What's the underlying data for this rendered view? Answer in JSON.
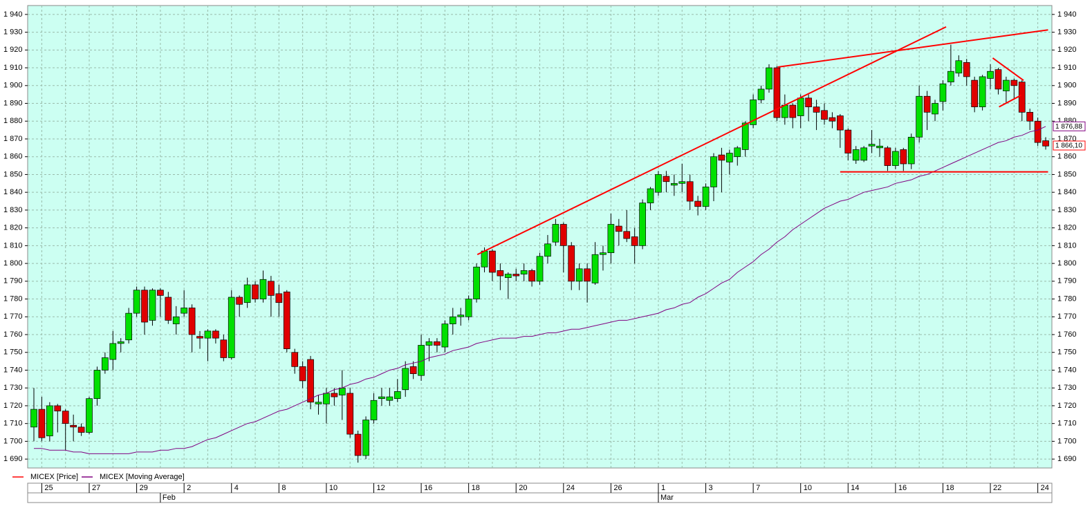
{
  "chart_data": {
    "type": "candlestick",
    "ylim": [
      1685,
      1945
    ],
    "yticks": [
      {
        "value": 1690,
        "label": "1 690"
      },
      {
        "value": 1700,
        "label": "1 700"
      },
      {
        "value": 1710,
        "label": "1 710"
      },
      {
        "value": 1720,
        "label": "1 720"
      },
      {
        "value": 1730,
        "label": "1 730"
      },
      {
        "value": 1740,
        "label": "1 740"
      },
      {
        "value": 1750,
        "label": "1 750"
      },
      {
        "value": 1760,
        "label": "1 760"
      },
      {
        "value": 1770,
        "label": "1 770"
      },
      {
        "value": 1780,
        "label": "1 780"
      },
      {
        "value": 1790,
        "label": "1 790"
      },
      {
        "value": 1800,
        "label": "1 800"
      },
      {
        "value": 1810,
        "label": "1 810"
      },
      {
        "value": 1820,
        "label": "1 820"
      },
      {
        "value": 1830,
        "label": "1 830"
      },
      {
        "value": 1840,
        "label": "1 840"
      },
      {
        "value": 1850,
        "label": "1 850"
      },
      {
        "value": 1860,
        "label": "1 860"
      },
      {
        "value": 1870,
        "label": "1 870"
      },
      {
        "value": 1880,
        "label": "1 880"
      },
      {
        "value": 1890,
        "label": "1 890"
      },
      {
        "value": 1900,
        "label": "1 900"
      },
      {
        "value": 1910,
        "label": "1 910"
      },
      {
        "value": 1920,
        "label": "1 920"
      },
      {
        "value": 1930,
        "label": "1 930"
      },
      {
        "value": 1940,
        "label": "1 940"
      }
    ],
    "grid": true,
    "up_color": "#00e000",
    "down_color": "#e00000",
    "date_ticks": [
      {
        "index": 1,
        "label": "25"
      },
      {
        "index": 7,
        "label": "27"
      },
      {
        "index": 13,
        "label": "29"
      },
      {
        "index": 19,
        "label": "2"
      },
      {
        "index": 25,
        "label": "4"
      },
      {
        "index": 31,
        "label": "8"
      },
      {
        "index": 37,
        "label": "10"
      },
      {
        "index": 43,
        "label": "12"
      },
      {
        "index": 49,
        "label": "16"
      },
      {
        "index": 55,
        "label": "18"
      },
      {
        "index": 61,
        "label": "20"
      },
      {
        "index": 67,
        "label": "24"
      },
      {
        "index": 73,
        "label": "26"
      },
      {
        "index": 79,
        "label": "1"
      },
      {
        "index": 85,
        "label": "3"
      },
      {
        "index": 91,
        "label": "7"
      },
      {
        "index": 97,
        "label": "10"
      },
      {
        "index": 103,
        "label": "14"
      },
      {
        "index": 109,
        "label": "16"
      },
      {
        "index": 115,
        "label": "18"
      },
      {
        "index": 121,
        "label": "22"
      },
      {
        "index": 127,
        "label": "24"
      }
    ],
    "month_ticks": [
      {
        "index": 16,
        "label": "Feb"
      },
      {
        "index": 79,
        "label": "Mar"
      }
    ],
    "series": [
      {
        "name": "MICEX [Price]",
        "color": "#ff0000",
        "open": [
          1708,
          1718,
          1703,
          1720,
          1717,
          1709,
          1708,
          1705,
          1724,
          1740,
          1746,
          1755,
          1757,
          1772,
          1785,
          1768,
          1785,
          1781,
          1766,
          1772,
          1775,
          1759,
          1758,
          1762,
          1757,
          1747,
          1781,
          1778,
          1788,
          1780,
          1790,
          1783,
          1784,
          1750,
          1742,
          1746,
          1721,
          1721,
          1727,
          1726,
          1727,
          1704,
          1692,
          1712,
          1724,
          1723,
          1724,
          1729,
          1742,
          1737,
          1754,
          1756,
          1753,
          1766,
          1770,
          1770,
          1780,
          1798,
          1807,
          1796,
          1792,
          1794,
          1794,
          1796,
          1790,
          1804,
          1812,
          1822,
          1810,
          1790,
          1797,
          1789,
          1805,
          1806,
          1821,
          1818,
          1815,
          1810,
          1834,
          1840,
          1849,
          1844,
          1845,
          1846,
          1835,
          1832,
          1843,
          1861,
          1857,
          1860,
          1864,
          1878,
          1892,
          1898,
          1910,
          1882,
          1889,
          1883,
          1893,
          1888,
          1886,
          1882,
          1883,
          1875,
          1858,
          1858,
          1866,
          1865,
          1865,
          1855,
          1864,
          1856,
          1871,
          1894,
          1884,
          1891,
          1902,
          1907,
          1913,
          1903,
          1888,
          1904,
          1909,
          1897,
          1903,
          1902,
          1885,
          1880,
          1869
        ],
        "high": [
          1730,
          1725,
          1722,
          1721,
          1718,
          1715,
          1710,
          1725,
          1742,
          1750,
          1762,
          1758,
          1775,
          1787,
          1787,
          1786,
          1786,
          1784,
          1776,
          1785,
          1777,
          1762,
          1763,
          1763,
          1760,
          1785,
          1782,
          1792,
          1790,
          1796,
          1793,
          1788,
          1785,
          1752,
          1745,
          1748,
          1726,
          1730,
          1730,
          1740,
          1730,
          1706,
          1714,
          1727,
          1730,
          1730,
          1735,
          1745,
          1745,
          1760,
          1758,
          1758,
          1768,
          1775,
          1775,
          1782,
          1800,
          1809,
          1808,
          1800,
          1795,
          1797,
          1800,
          1797,
          1806,
          1816,
          1825,
          1823,
          1812,
          1800,
          1800,
          1812,
          1810,
          1828,
          1825,
          1830,
          1820,
          1836,
          1843,
          1852,
          1852,
          1850,
          1856,
          1850,
          1838,
          1845,
          1862,
          1865,
          1864,
          1866,
          1880,
          1895,
          1900,
          1912,
          1911,
          1895,
          1890,
          1895,
          1895,
          1892,
          1890,
          1885,
          1884,
          1876,
          1866,
          1866,
          1875,
          1870,
          1866,
          1865,
          1865,
          1873,
          1900,
          1897,
          1892,
          1903,
          1923,
          1917,
          1915,
          1905,
          1906,
          1912,
          1910,
          1905,
          1904,
          1903,
          1887,
          1882,
          1871
        ],
        "low": [
          1700,
          1700,
          1700,
          1705,
          1695,
          1700,
          1703,
          1704,
          1720,
          1738,
          1740,
          1750,
          1755,
          1770,
          1760,
          1765,
          1770,
          1766,
          1760,
          1770,
          1750,
          1752,
          1745,
          1755,
          1745,
          1746,
          1770,
          1775,
          1778,
          1778,
          1770,
          1770,
          1750,
          1738,
          1730,
          1718,
          1715,
          1710,
          1720,
          1712,
          1702,
          1688,
          1690,
          1710,
          1720,
          1720,
          1722,
          1725,
          1735,
          1734,
          1745,
          1750,
          1750,
          1760,
          1765,
          1768,
          1778,
          1795,
          1790,
          1785,
          1780,
          1790,
          1790,
          1787,
          1788,
          1800,
          1810,
          1795,
          1785,
          1785,
          1778,
          1788,
          1796,
          1800,
          1810,
          1812,
          1800,
          1808,
          1830,
          1838,
          1840,
          1838,
          1840,
          1830,
          1827,
          1830,
          1835,
          1840,
          1850,
          1855,
          1860,
          1876,
          1890,
          1896,
          1880,
          1878,
          1876,
          1876,
          1880,
          1875,
          1878,
          1876,
          1865,
          1858,
          1856,
          1857,
          1862,
          1860,
          1852,
          1853,
          1852,
          1853,
          1868,
          1875,
          1880,
          1886,
          1900,
          1905,
          1900,
          1885,
          1886,
          1898,
          1895,
          1890,
          1892,
          1880,
          1875,
          1866,
          1864
        ],
        "close": [
          1718,
          1702,
          1720,
          1717,
          1710,
          1708,
          1705,
          1724,
          1740,
          1747,
          1755,
          1756,
          1772,
          1785,
          1767,
          1785,
          1782,
          1768,
          1770,
          1775,
          1760,
          1758,
          1762,
          1758,
          1747,
          1781,
          1777,
          1788,
          1780,
          1791,
          1782,
          1778,
          1752,
          1742,
          1734,
          1722,
          1722,
          1727,
          1725,
          1730,
          1704,
          1692,
          1712,
          1723,
          1725,
          1725,
          1728,
          1741,
          1738,
          1754,
          1756,
          1754,
          1766,
          1770,
          1771,
          1780,
          1798,
          1807,
          1795,
          1793,
          1794,
          1793,
          1796,
          1790,
          1804,
          1811,
          1822,
          1810,
          1790,
          1797,
          1790,
          1805,
          1806,
          1822,
          1818,
          1814,
          1810,
          1834,
          1842,
          1850,
          1846,
          1845,
          1846,
          1835,
          1832,
          1843,
          1860,
          1858,
          1862,
          1865,
          1879,
          1892,
          1898,
          1910,
          1882,
          1889,
          1882,
          1893,
          1888,
          1885,
          1881,
          1880,
          1875,
          1862,
          1864,
          1865,
          1867,
          1866,
          1855,
          1863,
          1856,
          1871,
          1894,
          1885,
          1890,
          1901,
          1908,
          1914,
          1905,
          1888,
          1905,
          1908,
          1898,
          1903,
          1900,
          1885,
          1880,
          1868,
          1866
        ]
      },
      {
        "name": "MICEX [Moving Average]",
        "color": "#800080",
        "values": [
          1696,
          1696,
          1695,
          1695,
          1695,
          1694,
          1694,
          1693,
          1693,
          1693,
          1693,
          1693,
          1693,
          1694,
          1694,
          1694,
          1695,
          1695,
          1696,
          1696,
          1697,
          1699,
          1701,
          1702,
          1704,
          1706,
          1708,
          1710,
          1711,
          1713,
          1715,
          1717,
          1718,
          1720,
          1722,
          1724,
          1726,
          1727,
          1729,
          1730,
          1732,
          1733,
          1735,
          1736,
          1738,
          1740,
          1741,
          1743,
          1744,
          1745,
          1747,
          1748,
          1749,
          1751,
          1752,
          1753,
          1755,
          1756,
          1757,
          1758,
          1758,
          1758,
          1759,
          1759,
          1760,
          1761,
          1761,
          1762,
          1763,
          1763,
          1764,
          1765,
          1766,
          1767,
          1768,
          1768,
          1769,
          1770,
          1771,
          1772,
          1774,
          1775,
          1777,
          1778,
          1781,
          1783,
          1786,
          1789,
          1791,
          1795,
          1798,
          1801,
          1805,
          1808,
          1812,
          1815,
          1819,
          1822,
          1825,
          1828,
          1831,
          1833,
          1835,
          1836,
          1838,
          1840,
          1841,
          1842,
          1843,
          1845,
          1846,
          1847,
          1849,
          1850,
          1852,
          1854,
          1856,
          1858,
          1860,
          1862,
          1864,
          1866,
          1868,
          1869,
          1871,
          1872,
          1874,
          1875,
          1877
        ]
      }
    ],
    "trend_lines": [
      {
        "x": [
          56.1,
          115.4
        ],
        "y": [
          1805,
          1933
        ],
        "color": "#ff0000"
      },
      {
        "x": [
          94.1,
          128.3
        ],
        "y": [
          1910.4,
          1931.3
        ],
        "color": "#ff0000"
      },
      {
        "x": [
          102,
          128.3
        ],
        "y": [
          1851.5,
          1851.5
        ],
        "color": "#ff0000"
      },
      {
        "x": [
          121.3,
          125.2
        ],
        "y": [
          1915.5,
          1902.9
        ],
        "color": "#ff0000"
      },
      {
        "x": [
          122.1,
          124.9
        ],
        "y": [
          1888,
          1894.6
        ],
        "color": "#ff0000"
      }
    ],
    "last_labels": [
      {
        "value": 1876.88,
        "label": "1 876,88",
        "color": "#800080"
      },
      {
        "value": 1866.1,
        "label": "1 866,10",
        "color": "#ff0000"
      }
    ]
  }
}
